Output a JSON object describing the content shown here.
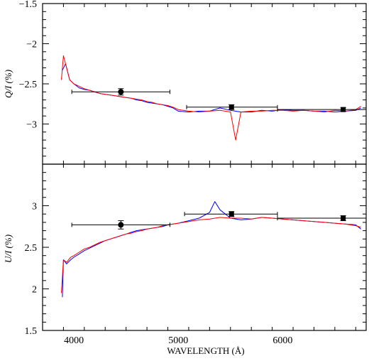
{
  "chart_data": [
    {
      "type": "line",
      "panel": "top",
      "ylabel": "Q/I (%)",
      "xlim": [
        3700,
        6800
      ],
      "ylim": [
        -3.5,
        -1.5
      ],
      "y_inverted": true,
      "y_ticks": [
        -1.5,
        -2,
        -2.5,
        -3
      ],
      "y_tick_labels": [
        "−1.5",
        "−2",
        "−2.5",
        "−3"
      ],
      "series": [
        {
          "color": "#0000ff",
          "x": [
            3890,
            3920,
            3960,
            4000,
            4050,
            4100,
            4150,
            4200,
            4250,
            4300,
            4350,
            4400,
            4450,
            4500,
            4550,
            4600,
            4650,
            4700,
            4750,
            4800,
            4850,
            4900,
            4950,
            5000,
            5100,
            5200,
            5300,
            5400,
            5500,
            5600,
            5700,
            5800,
            5900,
            6000,
            6100,
            6200,
            6300,
            6400,
            6500,
            6600,
            6700,
            6750
          ],
          "y": [
            -2.33,
            -2.25,
            -2.45,
            -2.5,
            -2.55,
            -2.57,
            -2.58,
            -2.6,
            -2.62,
            -2.63,
            -2.64,
            -2.65,
            -2.66,
            -2.67,
            -2.68,
            -2.7,
            -2.71,
            -2.73,
            -2.74,
            -2.75,
            -2.76,
            -2.78,
            -2.8,
            -2.84,
            -2.85,
            -2.84,
            -2.84,
            -2.8,
            -2.83,
            -2.85,
            -2.85,
            -2.83,
            -2.84,
            -2.82,
            -2.83,
            -2.83,
            -2.84,
            -2.84,
            -2.85,
            -2.84,
            -2.83,
            -2.8
          ]
        },
        {
          "color": "#ff0000",
          "x": [
            3880,
            3900,
            3930,
            3960,
            4000,
            4050,
            4100,
            4150,
            4200,
            4250,
            4300,
            4350,
            4400,
            4450,
            4500,
            4550,
            4600,
            4650,
            4700,
            4750,
            4800,
            4850,
            4900,
            4950,
            5000,
            5100,
            5200,
            5300,
            5400,
            5500,
            5550,
            5600,
            5700,
            5800,
            5900,
            6000,
            6100,
            6200,
            6300,
            6400,
            6500,
            6600,
            6700,
            6750
          ],
          "y": [
            -2.45,
            -2.15,
            -2.3,
            -2.45,
            -2.5,
            -2.53,
            -2.56,
            -2.58,
            -2.6,
            -2.62,
            -2.63,
            -2.64,
            -2.65,
            -2.66,
            -2.67,
            -2.68,
            -2.69,
            -2.7,
            -2.72,
            -2.73,
            -2.75,
            -2.76,
            -2.77,
            -2.79,
            -2.82,
            -2.84,
            -2.85,
            -2.84,
            -2.83,
            -2.85,
            -3.2,
            -2.85,
            -2.84,
            -2.84,
            -2.83,
            -2.83,
            -2.84,
            -2.83,
            -2.84,
            -2.85,
            -2.83,
            -2.84,
            -2.82,
            -2.78
          ]
        }
      ],
      "points": [
        {
          "x": 4450,
          "y": -2.6,
          "xmin": 3980,
          "xmax": 4920,
          "yerr": 0.04
        },
        {
          "x": 5510,
          "y": -2.79,
          "xmin": 5080,
          "xmax": 5950,
          "yerr": 0.03
        },
        {
          "x": 6580,
          "y": -2.82,
          "xmin": 5950,
          "xmax": 6800,
          "yerr": 0.025
        }
      ]
    },
    {
      "type": "line",
      "panel": "bottom",
      "ylabel": "U/I (%)",
      "xlabel": "WAVELENGTH (Å)",
      "xlim": [
        3700,
        6800
      ],
      "ylim": [
        1.5,
        3.5
      ],
      "x_ticks": [
        4000,
        5000,
        6000
      ],
      "x_tick_labels": [
        "4000",
        "5000",
        "6000"
      ],
      "y_ticks": [
        1.5,
        2,
        2.5,
        3
      ],
      "y_tick_labels": [
        "1.5",
        "2",
        "2.5",
        "3"
      ],
      "series": [
        {
          "color": "#0000ff",
          "x": [
            3890,
            3900,
            3930,
            3970,
            4000,
            4050,
            4100,
            4150,
            4200,
            4250,
            4300,
            4350,
            4400,
            4450,
            4500,
            4550,
            4600,
            4650,
            4700,
            4750,
            4800,
            4850,
            4900,
            4950,
            5000,
            5100,
            5200,
            5300,
            5350,
            5400,
            5500,
            5600,
            5700,
            5800,
            5900,
            6000,
            6100,
            6200,
            6300,
            6400,
            6500,
            6600,
            6700,
            6750
          ],
          "y": [
            1.9,
            2.35,
            2.3,
            2.35,
            2.38,
            2.42,
            2.46,
            2.49,
            2.52,
            2.55,
            2.58,
            2.6,
            2.62,
            2.64,
            2.66,
            2.68,
            2.7,
            2.71,
            2.72,
            2.73,
            2.74,
            2.75,
            2.77,
            2.78,
            2.79,
            2.82,
            2.85,
            2.92,
            3.05,
            2.95,
            2.85,
            2.83,
            2.84,
            2.86,
            2.85,
            2.84,
            2.83,
            2.82,
            2.81,
            2.8,
            2.79,
            2.78,
            2.77,
            2.72
          ]
        },
        {
          "color": "#ff0000",
          "x": [
            3880,
            3900,
            3930,
            3970,
            4000,
            4050,
            4100,
            4150,
            4200,
            4250,
            4300,
            4350,
            4400,
            4450,
            4500,
            4550,
            4600,
            4650,
            4700,
            4750,
            4800,
            4850,
            4900,
            4950,
            5000,
            5100,
            5200,
            5300,
            5400,
            5500,
            5600,
            5700,
            5800,
            5900,
            6000,
            6100,
            6200,
            6300,
            6400,
            6500,
            6600,
            6700,
            6750
          ],
          "y": [
            1.95,
            2.35,
            2.32,
            2.38,
            2.4,
            2.44,
            2.48,
            2.5,
            2.53,
            2.56,
            2.58,
            2.6,
            2.62,
            2.64,
            2.66,
            2.67,
            2.69,
            2.7,
            2.72,
            2.73,
            2.74,
            2.76,
            2.77,
            2.78,
            2.79,
            2.81,
            2.83,
            2.84,
            2.86,
            2.85,
            2.85,
            2.84,
            2.86,
            2.85,
            2.84,
            2.83,
            2.82,
            2.81,
            2.8,
            2.79,
            2.78,
            2.76,
            2.74
          ]
        }
      ],
      "points": [
        {
          "x": 4450,
          "y": 2.77,
          "xmin": 3980,
          "xmax": 4920,
          "yerr": 0.05
        },
        {
          "x": 5510,
          "y": 2.9,
          "xmin": 5060,
          "xmax": 5950,
          "yerr": 0.03
        },
        {
          "x": 6580,
          "y": 2.85,
          "xmin": 5950,
          "xmax": 6800,
          "yerr": 0.03
        }
      ]
    }
  ]
}
